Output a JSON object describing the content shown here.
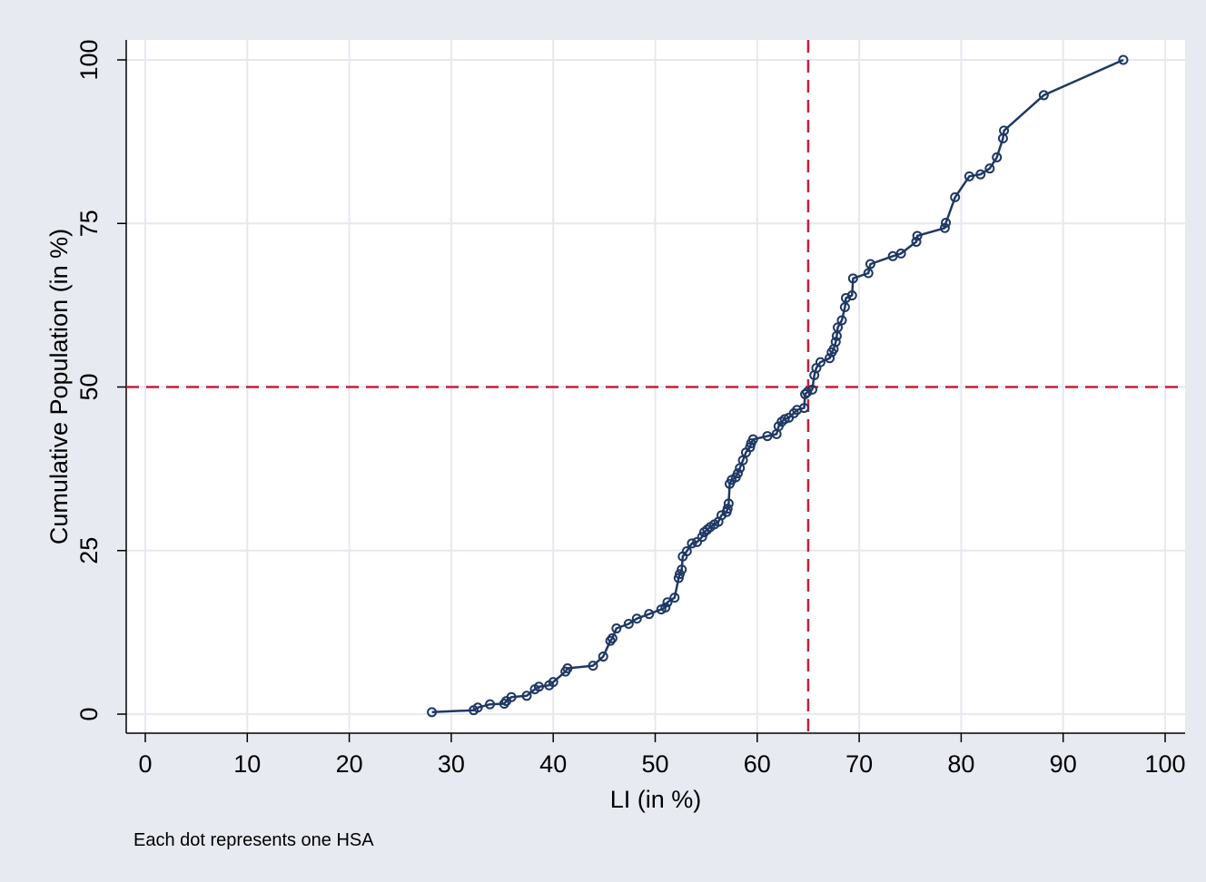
{
  "chart_data": {
    "type": "line",
    "marker": "hollow-circle",
    "xlabel": "LI (in %)",
    "ylabel": "Cumulative Population (in %)",
    "note": "Each dot represents one HSA",
    "xlim": [
      0,
      100
    ],
    "ylim": [
      0,
      100
    ],
    "xticks": [
      0,
      10,
      20,
      30,
      40,
      50,
      60,
      70,
      80,
      90,
      100
    ],
    "yticks": [
      0,
      25,
      50,
      75,
      100
    ],
    "grid": true,
    "reference_lines": {
      "x": 65,
      "y": 50
    },
    "colors": {
      "background": "#e8eaf2",
      "plot_area": "#ffffff",
      "grid": "#e6e8f1",
      "series": "#1f3864",
      "reference": "#c41e3a"
    },
    "series": [
      {
        "x": [
          28.1,
          32.2,
          32.6,
          33.8,
          35.2,
          35.4,
          35.9,
          37.4,
          38.2,
          38.6,
          39.6,
          40.0,
          41.2,
          41.4,
          43.9,
          44.9,
          45.6,
          45.8,
          46.2,
          47.4,
          48.2,
          49.4,
          50.6,
          51.0,
          51.2,
          51.9,
          52.3,
          52.4,
          52.6,
          52.7,
          53.1,
          53.6,
          54.1,
          54.6,
          54.8,
          55.1,
          55.4,
          55.8,
          56.2,
          56.5,
          57.0,
          57.1,
          57.2,
          57.3,
          57.5,
          57.9,
          58.1,
          58.3,
          58.6,
          58.9,
          59.3,
          59.4,
          59.6,
          61.0,
          61.9,
          62.1,
          62.4,
          62.7,
          63.1,
          63.6,
          63.9,
          64.6,
          64.7,
          64.9,
          65.4,
          65.6,
          65.8,
          66.2,
          67.1,
          67.3,
          67.5,
          67.7,
          67.8,
          67.9,
          68.3,
          68.6,
          68.7,
          69.3,
          69.4,
          70.9,
          71.1,
          73.3,
          74.1,
          75.6,
          75.7,
          78.4,
          78.5,
          79.4,
          80.8,
          81.9,
          82.8,
          83.5,
          84.1,
          84.2,
          88.1,
          95.9
        ],
        "y": [
          0.3,
          0.6,
          1.0,
          1.5,
          1.6,
          2.0,
          2.6,
          2.8,
          3.8,
          4.2,
          4.4,
          4.9,
          6.5,
          7.0,
          7.4,
          8.8,
          11.2,
          11.6,
          13.1,
          13.8,
          14.6,
          15.3,
          16.0,
          16.3,
          17.1,
          17.8,
          20.8,
          21.4,
          22.1,
          24.1,
          24.9,
          26.1,
          26.3,
          27.1,
          27.8,
          28.2,
          28.6,
          29.0,
          29.4,
          30.4,
          30.9,
          31.4,
          32.2,
          35.2,
          35.8,
          36.2,
          36.8,
          37.6,
          38.8,
          40.0,
          40.8,
          41.4,
          42.0,
          42.5,
          42.8,
          44.0,
          44.7,
          45.1,
          45.3,
          46.0,
          46.5,
          46.8,
          48.9,
          49.2,
          49.6,
          51.8,
          52.9,
          53.8,
          54.4,
          55.3,
          55.8,
          56.9,
          57.8,
          59.1,
          60.2,
          62.2,
          63.6,
          64.0,
          66.6,
          67.4,
          68.8,
          70.0,
          70.4,
          72.2,
          73.1,
          74.3,
          75.1,
          79.0,
          82.2,
          82.5,
          83.4,
          85.1,
          88.0,
          89.2,
          94.6,
          100.0
        ]
      }
    ]
  }
}
